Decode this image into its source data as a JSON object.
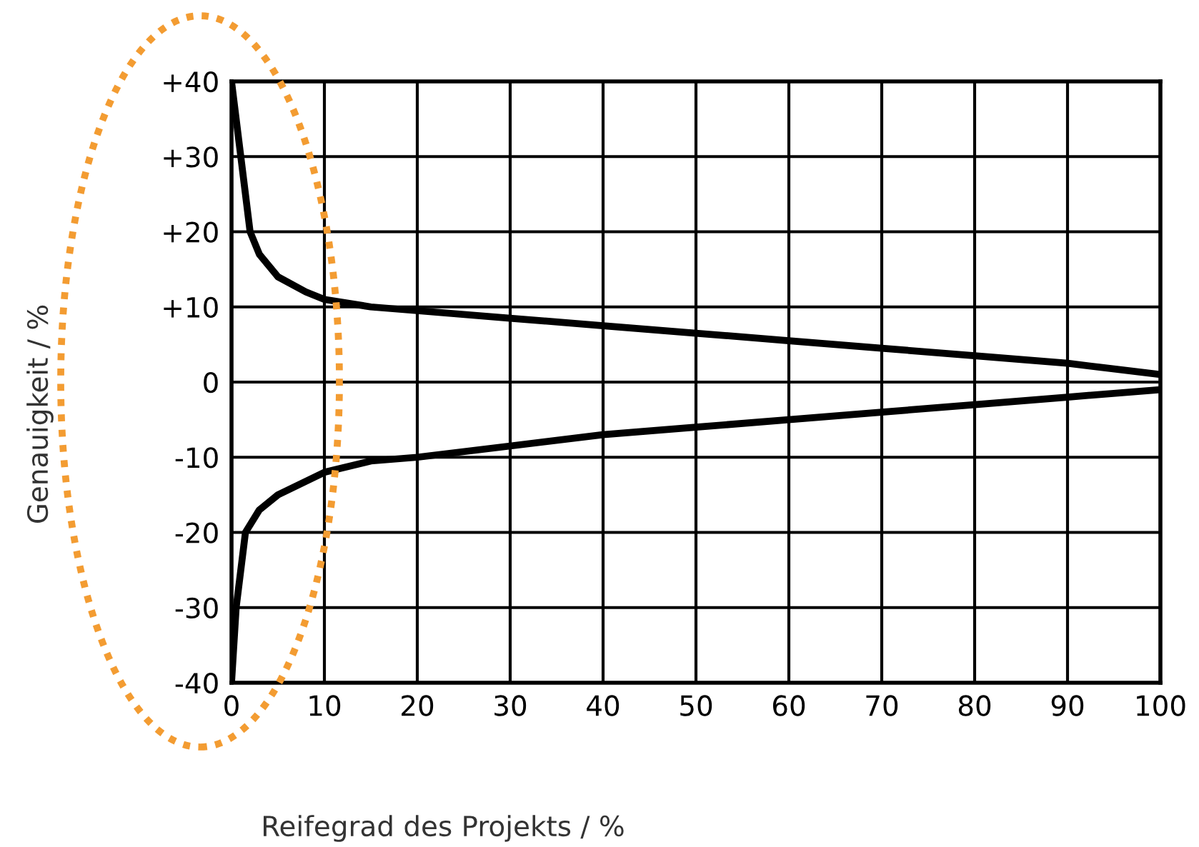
{
  "chart_data": {
    "type": "line",
    "xlabel": "Reifegrad des Projekts / %",
    "ylabel": "Genauigkeit / %",
    "series": [
      {
        "color": "#000000",
        "x": [
          0,
          1,
          2,
          3,
          5,
          8,
          10,
          15,
          20,
          30,
          40,
          50,
          60,
          70,
          80,
          90,
          100
        ],
        "values": [
          40,
          30,
          20,
          17,
          14,
          12,
          11,
          10,
          9.5,
          8.5,
          7.5,
          6.5,
          5.5,
          4.5,
          3.5,
          2.5,
          1
        ]
      },
      {
        "color": "#000000",
        "x": [
          0,
          0.5,
          1.5,
          3,
          5,
          10,
          15,
          20,
          30,
          40,
          50,
          60,
          70,
          80,
          90,
          100
        ],
        "values": [
          -40,
          -30,
          -20,
          -17,
          -15,
          -12,
          -10.5,
          -10,
          -8.5,
          -7,
          -6,
          -5,
          -4,
          -3,
          -2,
          -1
        ]
      }
    ],
    "xlim": [
      0,
      100
    ],
    "xticks": [
      0,
      10,
      20,
      30,
      40,
      50,
      60,
      70,
      80,
      90,
      100
    ],
    "ylim": [
      -40,
      40
    ],
    "yticks": [
      -40,
      -30,
      -20,
      -10,
      0,
      {
        "value": 10,
        "label": "+10"
      },
      {
        "value": 20,
        "label": "+20"
      },
      {
        "value": 30,
        "label": "+30"
      },
      {
        "value": 40,
        "label": "+40"
      }
    ],
    "grid": true,
    "marker": "none",
    "line_style": "solid"
  }
}
